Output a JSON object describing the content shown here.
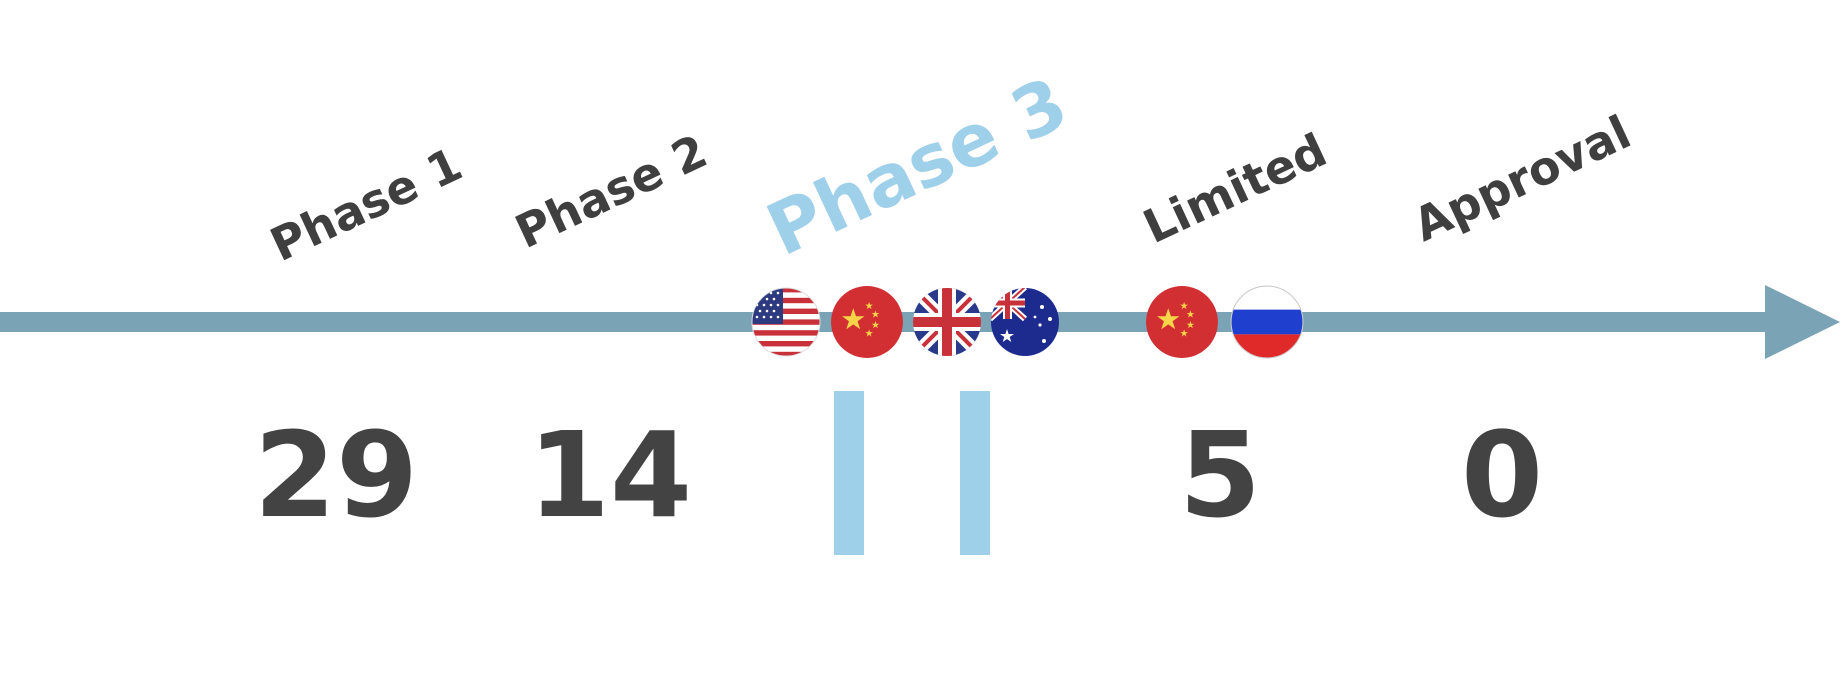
{
  "stages": [
    {
      "id": "phase1",
      "label": "Phase 1",
      "count": "29"
    },
    {
      "id": "phase2",
      "label": "Phase 2",
      "count": "14"
    },
    {
      "id": "phase3",
      "label": "Phase 3",
      "count_marker": "||"
    },
    {
      "id": "limited",
      "label": "Limited",
      "count": "5"
    },
    {
      "id": "approval",
      "label": "Approval",
      "count": "0"
    }
  ],
  "phase3_flags": [
    "usa-flag-icon",
    "china-flag-icon",
    "uk-flag-icon",
    "australia-flag-icon"
  ],
  "limited_flags": [
    "china-flag-icon",
    "russia-flag-icon"
  ],
  "colors": {
    "arrow": "#7aa3b5",
    "highlight": "#9fd0ea",
    "text": "#3f3f3f"
  }
}
